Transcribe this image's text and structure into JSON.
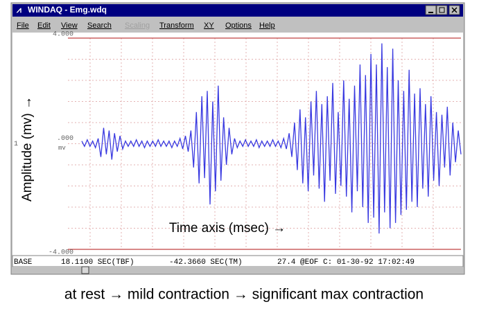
{
  "window": {
    "title": "WINDAQ - Emg.wdq",
    "menu": [
      "File",
      "Edit",
      "View",
      "Search",
      "Scaling",
      "Transform",
      "XY",
      "Options",
      "Help"
    ],
    "status_bar": [
      "BASE",
      "18.1100 SEC(TBF)",
      "-42.3660 SEC(TM)",
      "27.4 @EOF C: 01-30-92 17:02:49"
    ]
  },
  "chart_data": {
    "type": "line",
    "y_label": "Amplitude (mv) →",
    "x_label": "Time axis (msec) →",
    "y_unit": "mv",
    "channel_label": "1",
    "ylim": [
      -4,
      4
    ],
    "yticks": [
      {
        "value": 4,
        "label": "4.000"
      },
      {
        "value": 0,
        "label": ".000"
      },
      {
        "value": -4,
        "label": "-4.000"
      }
    ],
    "grid": true,
    "series": [
      {
        "name": "EMG",
        "color": "#3838e0",
        "values": [
          0.1,
          -0.1,
          0.15,
          -0.1,
          0.1,
          -0.15,
          0.2,
          -0.5,
          0.6,
          -0.4,
          0.5,
          -0.6,
          0.4,
          -0.3,
          0.3,
          -0.2,
          0.1,
          -0.1,
          0.1,
          -0.1,
          0.15,
          -0.1,
          0.1,
          -0.15,
          0.1,
          -0.1,
          0.1,
          -0.1,
          0.15,
          -0.1,
          0.1,
          -0.1,
          0.1,
          -0.15,
          0.1,
          -0.1,
          0.2,
          -0.2,
          0.3,
          -0.3,
          0.5,
          -0.9,
          1.2,
          -1.5,
          1.8,
          -1.3,
          2.0,
          -2.3,
          1.6,
          -1.8,
          2.2,
          -1.4,
          1.0,
          -0.8,
          0.6,
          -0.4,
          0.2,
          -0.15,
          0.1,
          -0.1,
          0.15,
          -0.1,
          0.1,
          -0.1,
          0.15,
          -0.15,
          0.1,
          -0.1,
          0.1,
          -0.1,
          0.15,
          -0.1,
          0.1,
          -0.15,
          0.2,
          -0.2,
          0.4,
          -0.5,
          0.8,
          -1.0,
          1.3,
          -1.5,
          1.0,
          -1.8,
          1.6,
          -1.2,
          2.0,
          -1.7,
          1.5,
          -2.2,
          1.8,
          -1.4,
          2.3,
          -1.9,
          1.2,
          -1.6,
          2.4,
          -2.0,
          1.7,
          -2.6,
          2.2,
          -1.8,
          3.0,
          -2.4,
          2.6,
          -3.0,
          3.4,
          -2.8,
          3.0,
          -3.4,
          3.8,
          -2.6,
          2.9,
          -3.2,
          3.6,
          -3.0,
          2.4,
          -2.7,
          2.0,
          -2.5,
          2.8,
          -2.2,
          1.9,
          -2.4,
          2.1,
          -1.7,
          1.5,
          -2.0,
          1.8,
          -1.4,
          1.2,
          -1.6,
          1.1,
          -0.9,
          1.4,
          -1.2,
          0.8,
          -0.7,
          0.5,
          -0.4
        ]
      }
    ]
  },
  "caption": "at rest → mild contraction → significant max contraction"
}
